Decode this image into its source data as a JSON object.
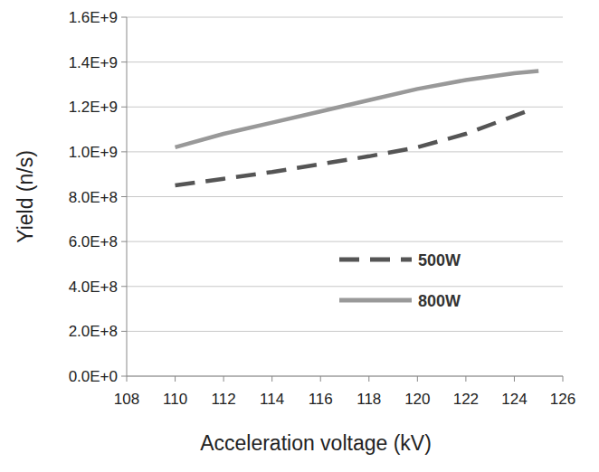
{
  "chart_data": {
    "type": "line",
    "x_label": "Acceleration voltage (kV)",
    "y_label": "Yield (n/s)",
    "xlim": [
      108,
      126
    ],
    "xticks": [
      108,
      110,
      112,
      114,
      116,
      118,
      120,
      122,
      124,
      126
    ],
    "ylim": [
      0,
      1600000000
    ],
    "yticks": [
      {
        "value": 0,
        "label": "0.0E+0"
      },
      {
        "value": 200000000,
        "label": "2.0E+8"
      },
      {
        "value": 400000000,
        "label": "4.0E+8"
      },
      {
        "value": 600000000,
        "label": "6.0E+8"
      },
      {
        "value": 800000000,
        "label": "8.0E+8"
      },
      {
        "value": 1000000000,
        "label": "1.0E+9"
      },
      {
        "value": 1200000000,
        "label": "1.2E+9"
      },
      {
        "value": 1400000000,
        "label": "1.4E+9"
      },
      {
        "value": 1600000000,
        "label": "1.6E+9"
      }
    ],
    "grid": true,
    "legend": "right",
    "series": [
      {
        "name": "500W",
        "color": "#555555",
        "line_style": "dashed",
        "x": [
          110,
          112,
          114,
          116,
          118,
          120,
          122,
          124.5
        ],
        "values": [
          850000000,
          880000000,
          910000000,
          945000000,
          980000000,
          1020000000,
          1080000000,
          1180000000
        ]
      },
      {
        "name": "800W",
        "color": "#999999",
        "line_style": "solid",
        "x": [
          110,
          112,
          114,
          116,
          118,
          120,
          122,
          124,
          125
        ],
        "values": [
          1020000000,
          1080000000,
          1130000000,
          1180000000,
          1230000000,
          1280000000,
          1320000000,
          1350000000,
          1360000000
        ]
      }
    ]
  }
}
